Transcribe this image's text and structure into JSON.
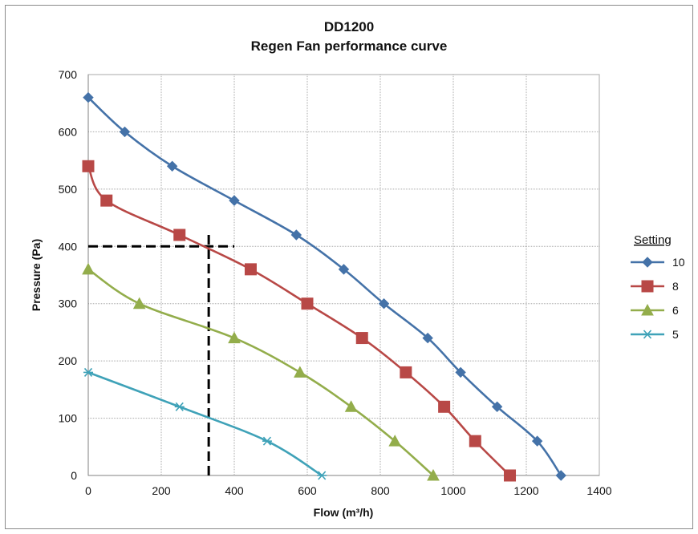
{
  "chart_data": {
    "type": "line",
    "title": "DD1200",
    "subtitle": "Regen Fan performance curve",
    "xlabel": "Flow (m³/h)",
    "ylabel": "Pressure (Pa)",
    "xlim": [
      0,
      1400
    ],
    "ylim": [
      0,
      700
    ],
    "x_ticks": [
      0,
      200,
      400,
      600,
      800,
      1000,
      1200,
      1400
    ],
    "y_ticks": [
      0,
      100,
      200,
      300,
      400,
      500,
      600,
      700
    ],
    "grid": true,
    "legend": {
      "title": "Setting",
      "position": "right"
    },
    "series": [
      {
        "name": "10",
        "color": "#4472A8",
        "marker": "diamond",
        "x": [
          0,
          100,
          230,
          400,
          570,
          700,
          810,
          930,
          1020,
          1120,
          1230,
          1295
        ],
        "y": [
          660,
          600,
          540,
          480,
          420,
          360,
          300,
          240,
          180,
          120,
          60,
          0
        ]
      },
      {
        "name": "8",
        "color": "#B84846",
        "marker": "square",
        "x": [
          0,
          50,
          250,
          445,
          600,
          750,
          870,
          975,
          1060,
          1155
        ],
        "y": [
          540,
          480,
          420,
          360,
          300,
          240,
          180,
          120,
          60,
          0
        ]
      },
      {
        "name": "6",
        "color": "#93AD4B",
        "marker": "triangle",
        "x": [
          0,
          140,
          400,
          580,
          720,
          840,
          945
        ],
        "y": [
          360,
          300,
          240,
          180,
          120,
          60,
          0
        ]
      },
      {
        "name": "5",
        "color": "#3FA2B8",
        "marker": "asterisk",
        "x": [
          0,
          250,
          490,
          640
        ],
        "y": [
          180,
          120,
          60,
          0
        ]
      }
    ],
    "annotations": [
      {
        "type": "dashed-line",
        "color": "#000000",
        "points": [
          [
            0,
            400
          ],
          [
            400,
            400
          ]
        ]
      },
      {
        "type": "dashed-line",
        "color": "#000000",
        "points": [
          [
            330,
            0
          ],
          [
            330,
            420
          ]
        ]
      }
    ]
  }
}
